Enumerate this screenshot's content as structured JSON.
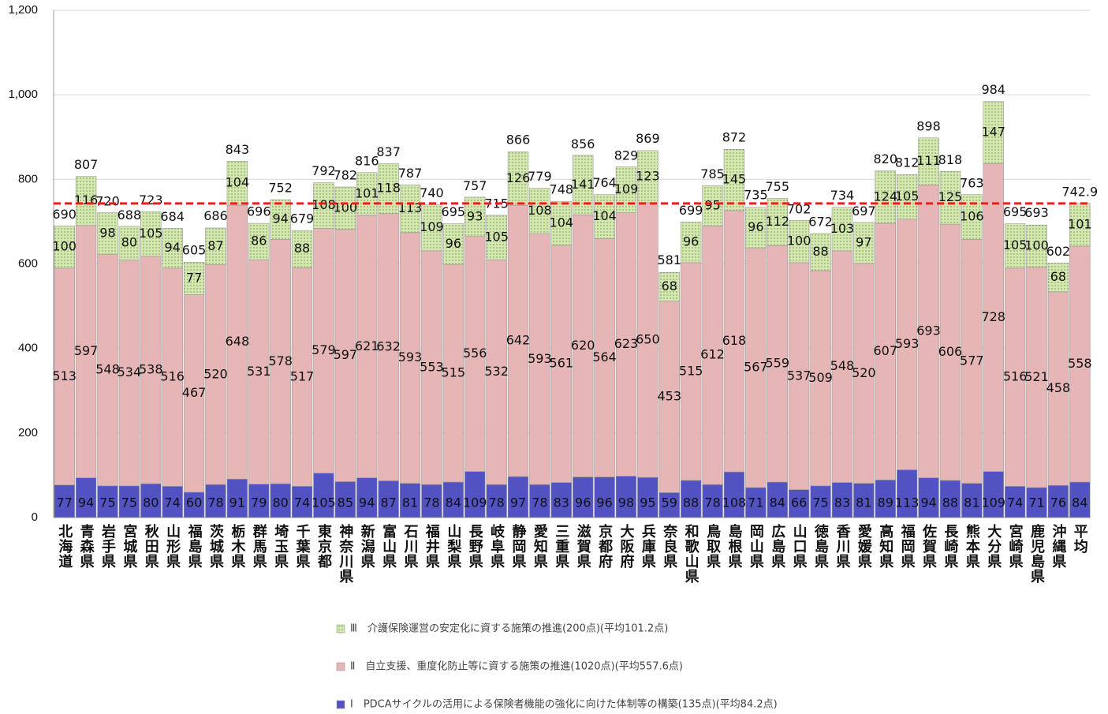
{
  "chart_data": {
    "type": "stacked-bar",
    "categories": [
      "北海道",
      "青森県",
      "岩手県",
      "宮城県",
      "秋田県",
      "山形県",
      "福島県",
      "茨城県",
      "栃木県",
      "群馬県",
      "埼玉県",
      "千葉県",
      "東京都",
      "神奈川県",
      "新潟県",
      "富山県",
      "石川県",
      "福井県",
      "山梨県",
      "長野県",
      "岐阜県",
      "静岡県",
      "愛知県",
      "三重県",
      "滋賀県",
      "京都府",
      "大阪府",
      "兵庫県",
      "奈良県",
      "和歌山県",
      "鳥取県",
      "島根県",
      "岡山県",
      "広島県",
      "山口県",
      "徳島県",
      "香川県",
      "愛媛県",
      "高知県",
      "福岡県",
      "佐賀県",
      "長崎県",
      "熊本県",
      "大分県",
      "宮崎県",
      "鹿児島県",
      "沖縄県",
      "平均"
    ],
    "series": [
      {
        "name": "Ⅰ　PDCAサイクルの活用による保険者機能の強化に向けた体制等の構築(135点)(平均84.2点)",
        "color": "#5252c2",
        "values": [
          77,
          94,
          75,
          75,
          80,
          74,
          60,
          78,
          91,
          79,
          80,
          74,
          105,
          85,
          94,
          87,
          81,
          78,
          84,
          109,
          78,
          97,
          78,
          83,
          96,
          96,
          98,
          95,
          59,
          88,
          78,
          108,
          71,
          84,
          66,
          75,
          83,
          81,
          89,
          113,
          94,
          88,
          81,
          109,
          74,
          71,
          76,
          84
        ]
      },
      {
        "name": "Ⅱ　自立支援、重度化防止等に資する施策の推進(1020点)(平均557.6点)",
        "color": "#e6b5b5",
        "values": [
          513,
          597,
          548,
          534,
          538,
          516,
          467,
          520,
          648,
          531,
          578,
          517,
          579,
          597,
          621,
          632,
          593,
          553,
          515,
          556,
          532,
          642,
          593,
          561,
          620,
          564,
          623,
          650,
          453,
          515,
          612,
          618,
          567,
          559,
          537,
          509,
          548,
          520,
          607,
          593,
          693,
          606,
          577,
          728,
          516,
          521,
          458,
          558
        ]
      },
      {
        "name": "Ⅲ　介護保険運営の安定化に資する施策の推進(200点)(平均101.2点)",
        "color": "#d5e8b0",
        "values": [
          100,
          116,
          98,
          80,
          105,
          94,
          77,
          87,
          104,
          86,
          94,
          88,
          108,
          100,
          101,
          118,
          113,
          109,
          96,
          93,
          105,
          126,
          108,
          104,
          141,
          104,
          109,
          123,
          68,
          96,
          95,
          145,
          96,
          112,
          100,
          88,
          103,
          97,
          124,
          105,
          111,
          125,
          106,
          147,
          105,
          100,
          68,
          101
        ]
      }
    ],
    "totals": [
      690,
      807,
      720,
      688,
      723,
      684,
      605,
      686,
      843,
      696,
      752,
      679,
      792,
      782,
      816,
      837,
      787,
      740,
      695,
      757,
      715,
      866,
      779,
      748,
      856,
      764,
      829,
      869,
      581,
      699,
      785,
      872,
      735,
      755,
      702,
      672,
      734,
      697,
      820,
      812,
      898,
      818,
      763,
      984,
      695,
      693,
      602,
      742.9
    ],
    "average_line_color": "#e8211d",
    "ylim": [
      0,
      1200
    ],
    "yticks": [
      0,
      200,
      400,
      600,
      800,
      {
        "value": 1000,
        "label": "1,000"
      },
      {
        "value": 1200,
        "label": "1,200"
      }
    ]
  }
}
